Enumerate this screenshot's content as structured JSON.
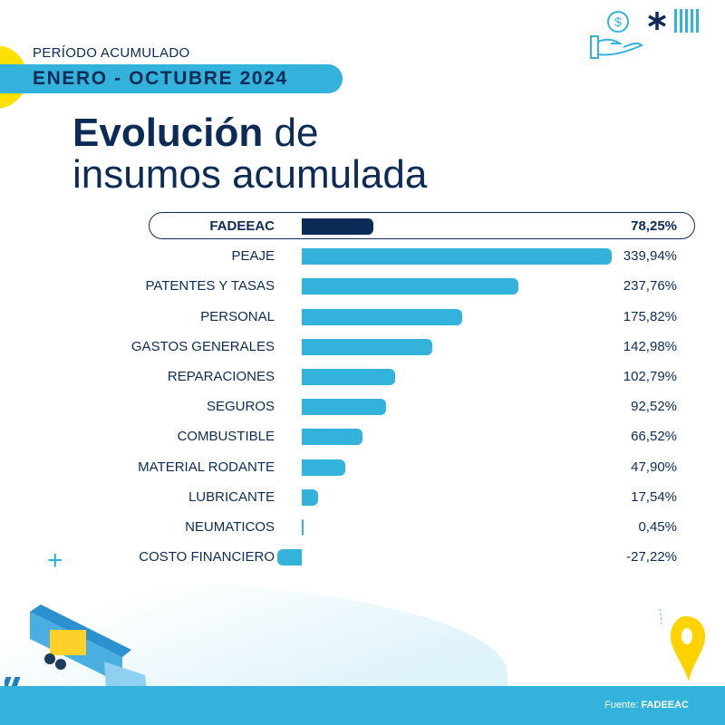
{
  "header": {
    "period_label": "PERÍODO ACUMULADO",
    "period": "ENERO - OCTUBRE 2024",
    "title_bold": "Evolución",
    "title_rest1": " de",
    "title_line2": "insumos acumulada"
  },
  "footer": {
    "source_prefix": "Fuente: ",
    "source_name": "FADEEAC"
  },
  "colors": {
    "navy": "#0d2b57",
    "bar": "#33b3dc",
    "accent_yellow": "#ffe000"
  },
  "icons": [
    "hand-dollar-icon",
    "asterisk-icon",
    "stripes-icon",
    "plus-icon",
    "truck-illustration",
    "map-pin-icon"
  ],
  "chart_data": {
    "type": "bar",
    "orientation": "horizontal",
    "categories": [
      "FADEEAC",
      "PEAJE",
      "PATENTES Y TASAS",
      "PERSONAL",
      "GASTOS GENERALES",
      "REPARACIONES",
      "SEGUROS",
      "COMBUSTIBLE",
      "MATERIAL RODANTE",
      "LUBRICANTE",
      "NEUMATICOS",
      "COSTO FINANCIERO"
    ],
    "values": [
      78.25,
      339.94,
      237.76,
      175.82,
      142.98,
      102.79,
      92.52,
      66.52,
      47.9,
      17.54,
      0.45,
      -27.22
    ],
    "labels": [
      "78,25%",
      "339,94%",
      "237,76%",
      "175,82%",
      "142,98%",
      "102,79%",
      "92,52%",
      "66,52%",
      "47,90%",
      "17,54%",
      "0,45%",
      "-27,22%"
    ],
    "highlight": "FADEEAC",
    "grid": false
  }
}
